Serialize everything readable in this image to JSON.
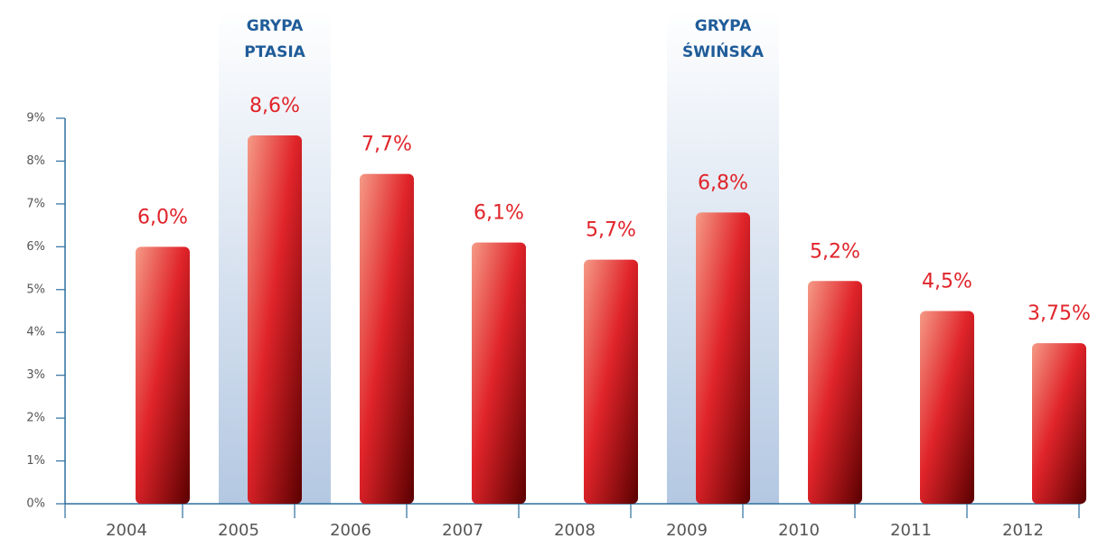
{
  "chart_data": {
    "type": "bar",
    "categories": [
      "2004",
      "2005",
      "2006",
      "2007",
      "2008",
      "2009",
      "2010",
      "2011",
      "2012"
    ],
    "values": [
      6.0,
      8.6,
      7.7,
      6.1,
      5.7,
      6.8,
      5.2,
      4.5,
      3.75
    ],
    "value_labels": [
      "6,0%",
      "8,6%",
      "7,7%",
      "6,1%",
      "5,7%",
      "6,8%",
      "5,2%",
      "4,5%",
      "3,75%"
    ],
    "color": "#e0242a",
    "ylim": [
      0,
      9
    ],
    "yticks": [
      {
        "value": 0,
        "label": "0%"
      },
      {
        "value": 1,
        "label": "1%"
      },
      {
        "value": 2,
        "label": "2%"
      },
      {
        "value": 3,
        "label": "3%"
      },
      {
        "value": 4,
        "label": "4%"
      },
      {
        "value": 5,
        "label": "5%"
      },
      {
        "value": 6,
        "label": "6%"
      },
      {
        "value": 7,
        "label": "7%"
      },
      {
        "value": 8,
        "label": "8%"
      },
      {
        "value": 9,
        "label": "9%"
      }
    ],
    "grid": false,
    "annotations": [
      {
        "category": "2005",
        "lines": [
          "GRYPA",
          "PTASIA"
        ]
      },
      {
        "category": "2009",
        "lines": [
          "GRYPA",
          "ŚWIŃSKA"
        ]
      }
    ]
  }
}
